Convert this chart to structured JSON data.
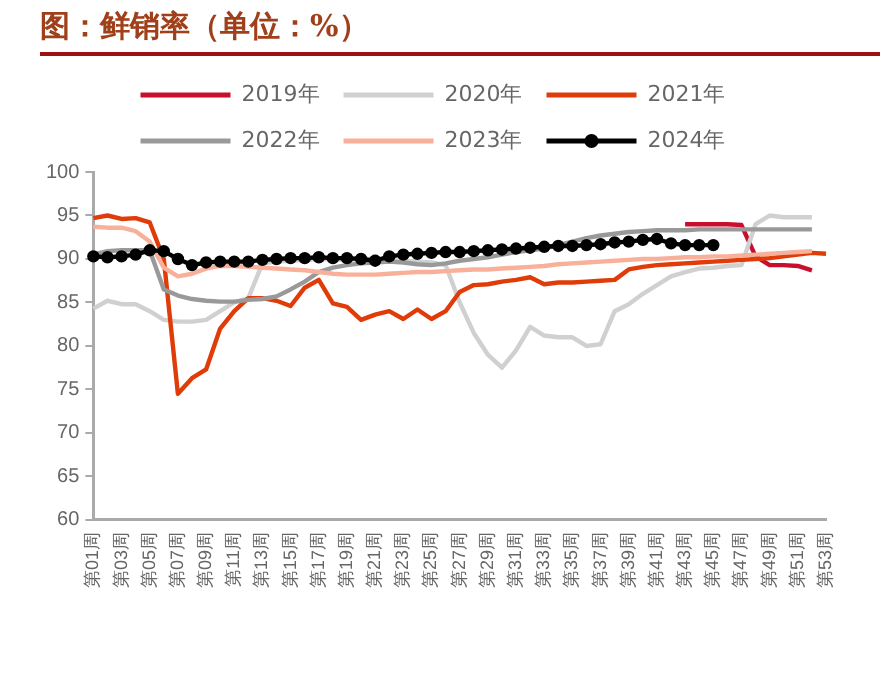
{
  "chart_data": {
    "type": "line",
    "title": "图：鲜销率（单位：%）",
    "categories": [
      "第01周",
      null,
      "第03周",
      null,
      "第05周",
      null,
      "第07周",
      null,
      "第09周",
      null,
      "第11周",
      null,
      "第13周",
      null,
      "第15周",
      null,
      "第17周",
      null,
      "第19周",
      null,
      "第21周",
      null,
      "第23周",
      null,
      "第25周",
      null,
      "第27周",
      null,
      "第29周",
      null,
      "第31周",
      null,
      "第33周",
      null,
      "第35周",
      null,
      "第37周",
      null,
      "第39周",
      null,
      "第41周",
      null,
      "第43周",
      null,
      "第45周",
      null,
      "第47周",
      null,
      "第49周",
      null,
      "第51周",
      null,
      "第53周"
    ],
    "series": [
      {
        "name": "2019年",
        "color": "#c8102e",
        "marker": "none",
        "values": [
          null,
          null,
          null,
          null,
          null,
          null,
          null,
          null,
          null,
          null,
          null,
          null,
          null,
          null,
          null,
          null,
          null,
          null,
          null,
          null,
          null,
          null,
          null,
          null,
          null,
          null,
          null,
          null,
          null,
          null,
          null,
          null,
          null,
          null,
          null,
          null,
          null,
          null,
          null,
          null,
          null,
          null,
          94,
          94,
          94,
          94,
          93.9,
          90.3,
          89.3,
          89.3,
          89.2,
          88.7,
          null
        ]
      },
      {
        "name": "2020年",
        "color": "#d0d0d0",
        "marker": "none",
        "values": [
          84.3,
          85.2,
          84.8,
          84.8,
          84,
          83,
          82.8,
          82.8,
          83,
          84,
          85,
          85.5,
          89.5,
          89.7,
          89.8,
          89.9,
          90,
          90,
          89.9,
          90,
          90,
          89.9,
          89.8,
          89.7,
          89.6,
          89.3,
          85,
          81.5,
          79,
          77.5,
          79.5,
          82.2,
          81.2,
          81,
          81,
          80,
          80.2,
          84,
          84.8,
          86,
          87,
          88,
          88.5,
          88.9,
          89,
          89.2,
          89.3,
          94,
          95,
          94.8,
          94.8,
          94.8,
          null
        ]
      },
      {
        "name": "2021年",
        "color": "#e03c0a",
        "marker": "none",
        "values": [
          94.7,
          95,
          94.6,
          94.7,
          94.2,
          90,
          74.5,
          76.3,
          77.3,
          82,
          84,
          85.5,
          85.5,
          85.2,
          84.6,
          86.7,
          87.6,
          84.9,
          84.5,
          83,
          83.6,
          84,
          83.1,
          84.2,
          83.1,
          84,
          86.2,
          87,
          87.1,
          87.4,
          87.6,
          87.9,
          87.1,
          87.3,
          87.3,
          87.4,
          87.5,
          87.6,
          88.8,
          89.1,
          89.3,
          89.4,
          89.5,
          89.6,
          89.7,
          89.8,
          89.9,
          90,
          90.1,
          90.3,
          90.5,
          90.7,
          90.6
        ]
      },
      {
        "name": "2022年",
        "color": "#999999",
        "marker": "none",
        "values": [
          90.5,
          90.9,
          91,
          91,
          91,
          86.5,
          85.8,
          85.4,
          85.2,
          85.1,
          85.1,
          85.3,
          85.4,
          85.7,
          86.5,
          87.4,
          88.5,
          89,
          89.3,
          89.5,
          89.6,
          89.7,
          89.6,
          89.4,
          89.3,
          89.5,
          89.8,
          90,
          90.2,
          90.5,
          90.8,
          91,
          91.2,
          91.6,
          92,
          92.4,
          92.7,
          92.9,
          93.1,
          93.2,
          93.3,
          93.3,
          93.3,
          93.4,
          93.4,
          93.4,
          93.4,
          93.4,
          93.4,
          93.4,
          93.4,
          93.4,
          null
        ]
      },
      {
        "name": "2023年",
        "color": "#f9b09a",
        "marker": "none",
        "values": [
          93.7,
          93.6,
          93.6,
          93.2,
          92,
          89,
          88,
          88.3,
          88.9,
          89.2,
          89.2,
          89.1,
          89,
          88.9,
          88.8,
          88.7,
          88.5,
          88.3,
          88.2,
          88.2,
          88.2,
          88.3,
          88.4,
          88.5,
          88.5,
          88.6,
          88.7,
          88.8,
          88.8,
          88.9,
          89,
          89.1,
          89.2,
          89.4,
          89.5,
          89.6,
          89.7,
          89.8,
          89.9,
          90,
          90,
          90.1,
          90.2,
          90.2,
          90.3,
          90.3,
          90.4,
          90.5,
          90.6,
          90.7,
          90.8,
          90.9,
          null
        ]
      },
      {
        "name": "2024年",
        "color": "#000000",
        "marker": "circle",
        "values": [
          90.3,
          90.2,
          90.3,
          90.5,
          91,
          90.9,
          90,
          89.3,
          89.6,
          89.7,
          89.7,
          89.7,
          89.9,
          90,
          90.1,
          90.1,
          90.2,
          90.1,
          90.1,
          90,
          89.8,
          90.3,
          90.5,
          90.6,
          90.7,
          90.8,
          90.8,
          90.9,
          91,
          91.1,
          91.2,
          91.3,
          91.4,
          91.5,
          91.5,
          91.6,
          91.7,
          91.9,
          92,
          92.2,
          92.3,
          91.8,
          91.6,
          91.6,
          91.6,
          null,
          null,
          null,
          null,
          null,
          null,
          null,
          null
        ]
      }
    ],
    "ylim": [
      60,
      100
    ],
    "yticks": [
      60,
      65,
      70,
      75,
      80,
      85,
      90,
      95,
      100
    ],
    "grid": false,
    "legend": "top"
  }
}
